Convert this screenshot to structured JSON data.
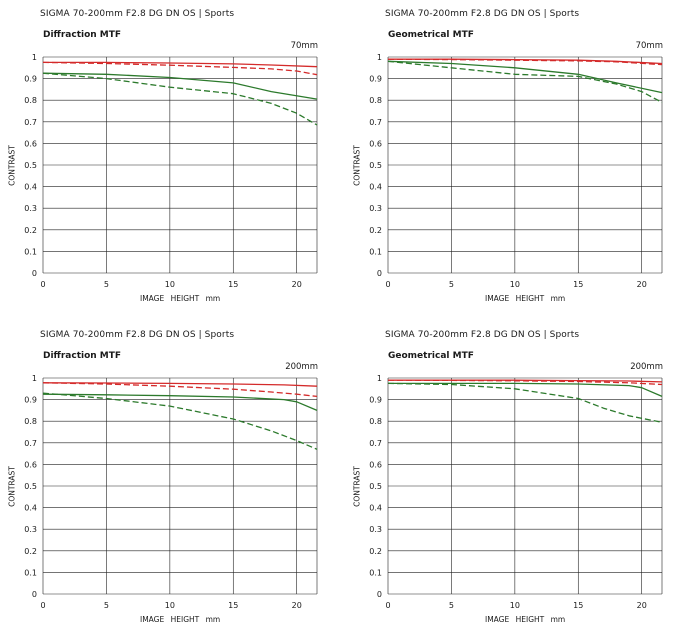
{
  "colors": {
    "sagittal_red": "#d42a2a",
    "meridional_green": "#2c7a2c",
    "grid": "#222222"
  },
  "chart_data": [
    {
      "type": "line",
      "title": "SIGMA 70-200mm F2.8 DG DN OS | Sports",
      "subtitle": "Diffraction MTF",
      "focal": "70mm",
      "xlabel": "IMAGE HEIGHT   mm",
      "ylabel": "CONTRAST",
      "xlim": [
        0,
        21.6
      ],
      "ylim": [
        0,
        1
      ],
      "xticks": [
        0,
        5,
        10,
        15,
        20
      ],
      "yticks": [
        "0",
        "0.1",
        "0.2",
        "0.3",
        "0.4",
        "0.5",
        "0.6",
        "0.7",
        "0.8",
        "0.9",
        "1"
      ],
      "series": [
        {
          "color": "red",
          "dash": false,
          "points": [
            [
              0,
              0.975
            ],
            [
              5,
              0.975
            ],
            [
              10,
              0.972
            ],
            [
              15,
              0.968
            ],
            [
              18,
              0.963
            ],
            [
              21.6,
              0.955
            ]
          ]
        },
        {
          "color": "red",
          "dash": true,
          "points": [
            [
              0,
              0.975
            ],
            [
              5,
              0.97
            ],
            [
              10,
              0.962
            ],
            [
              15,
              0.952
            ],
            [
              18,
              0.945
            ],
            [
              20,
              0.935
            ],
            [
              21.6,
              0.918
            ]
          ]
        },
        {
          "color": "green",
          "dash": false,
          "points": [
            [
              0,
              0.925
            ],
            [
              5,
              0.92
            ],
            [
              10,
              0.905
            ],
            [
              15,
              0.88
            ],
            [
              18,
              0.84
            ],
            [
              21.6,
              0.805
            ]
          ]
        },
        {
          "color": "green",
          "dash": true,
          "points": [
            [
              0,
              0.925
            ],
            [
              5,
              0.9
            ],
            [
              10,
              0.86
            ],
            [
              15,
              0.83
            ],
            [
              18,
              0.785
            ],
            [
              20,
              0.74
            ],
            [
              21.6,
              0.685
            ]
          ]
        }
      ]
    },
    {
      "type": "line",
      "title": "SIGMA 70-200mm F2.8 DG DN OS | Sports",
      "subtitle": "Geometrical MTF",
      "focal": "70mm",
      "xlabel": "IMAGE HEIGHT   mm",
      "ylabel": "CONTRAST",
      "xlim": [
        0,
        21.6
      ],
      "ylim": [
        0,
        1
      ],
      "xticks": [
        0,
        5,
        10,
        15,
        20
      ],
      "yticks": [
        "0",
        "0.1",
        "0.2",
        "0.3",
        "0.4",
        "0.5",
        "0.6",
        "0.7",
        "0.8",
        "0.9",
        "1"
      ],
      "series": [
        {
          "color": "red",
          "dash": false,
          "points": [
            [
              0,
              0.99
            ],
            [
              5,
              0.99
            ],
            [
              10,
              0.988
            ],
            [
              15,
              0.985
            ],
            [
              18,
              0.98
            ],
            [
              21.6,
              0.97
            ]
          ]
        },
        {
          "color": "red",
          "dash": true,
          "points": [
            [
              0,
              0.99
            ],
            [
              5,
              0.988
            ],
            [
              10,
              0.985
            ],
            [
              15,
              0.982
            ],
            [
              18,
              0.978
            ],
            [
              21.6,
              0.965
            ]
          ]
        },
        {
          "color": "green",
          "dash": false,
          "points": [
            [
              0,
              0.98
            ],
            [
              5,
              0.97
            ],
            [
              10,
              0.95
            ],
            [
              15,
              0.92
            ],
            [
              18,
              0.88
            ],
            [
              21.6,
              0.835
            ]
          ]
        },
        {
          "color": "green",
          "dash": true,
          "points": [
            [
              0,
              0.98
            ],
            [
              5,
              0.95
            ],
            [
              10,
              0.92
            ],
            [
              15,
              0.91
            ],
            [
              18,
              0.875
            ],
            [
              20,
              0.84
            ],
            [
              21.6,
              0.79
            ]
          ]
        }
      ]
    },
    {
      "type": "line",
      "title": "SIGMA 70-200mm F2.8 DG DN OS | Sports",
      "subtitle": "Diffraction MTF",
      "focal": "200mm",
      "xlabel": "IMAGE HEIGHT   mm",
      "ylabel": "CONTRAST",
      "xlim": [
        0,
        21.6
      ],
      "ylim": [
        0,
        1
      ],
      "xticks": [
        0,
        5,
        10,
        15,
        20
      ],
      "yticks": [
        "0",
        "0.1",
        "0.2",
        "0.3",
        "0.4",
        "0.5",
        "0.6",
        "0.7",
        "0.8",
        "0.9",
        "1"
      ],
      "series": [
        {
          "color": "red",
          "dash": false,
          "points": [
            [
              0,
              0.978
            ],
            [
              5,
              0.977
            ],
            [
              10,
              0.975
            ],
            [
              15,
              0.972
            ],
            [
              19,
              0.968
            ],
            [
              21.6,
              0.962
            ]
          ]
        },
        {
          "color": "red",
          "dash": true,
          "points": [
            [
              0,
              0.978
            ],
            [
              5,
              0.972
            ],
            [
              10,
              0.962
            ],
            [
              15,
              0.948
            ],
            [
              18,
              0.935
            ],
            [
              20,
              0.925
            ],
            [
              21.6,
              0.915
            ]
          ]
        },
        {
          "color": "green",
          "dash": false,
          "points": [
            [
              0,
              0.925
            ],
            [
              5,
              0.922
            ],
            [
              10,
              0.918
            ],
            [
              15,
              0.912
            ],
            [
              19,
              0.9
            ],
            [
              20,
              0.89
            ],
            [
              21.6,
              0.85
            ]
          ]
        },
        {
          "color": "green",
          "dash": true,
          "points": [
            [
              0,
              0.93
            ],
            [
              5,
              0.905
            ],
            [
              10,
              0.87
            ],
            [
              15,
              0.81
            ],
            [
              18,
              0.755
            ],
            [
              20,
              0.71
            ],
            [
              21.6,
              0.67
            ]
          ]
        }
      ]
    },
    {
      "type": "line",
      "title": "SIGMA 70-200mm F2.8 DG DN OS | Sports",
      "subtitle": "Geometrical MTF",
      "focal": "200mm",
      "xlabel": "IMAGE HEIGHT   mm",
      "ylabel": "CONTRAST",
      "xlim": [
        0,
        21.6
      ],
      "ylim": [
        0,
        1
      ],
      "xticks": [
        0,
        5,
        10,
        15,
        20
      ],
      "yticks": [
        "0",
        "0.1",
        "0.2",
        "0.3",
        "0.4",
        "0.5",
        "0.6",
        "0.7",
        "0.8",
        "0.9",
        "1"
      ],
      "series": [
        {
          "color": "red",
          "dash": false,
          "points": [
            [
              0,
              0.99
            ],
            [
              5,
              0.99
            ],
            [
              10,
              0.99
            ],
            [
              15,
              0.988
            ],
            [
              19,
              0.986
            ],
            [
              21.6,
              0.982
            ]
          ]
        },
        {
          "color": "red",
          "dash": true,
          "points": [
            [
              0,
              0.99
            ],
            [
              5,
              0.989
            ],
            [
              10,
              0.987
            ],
            [
              15,
              0.984
            ],
            [
              19,
              0.978
            ],
            [
              21.6,
              0.97
            ]
          ]
        },
        {
          "color": "green",
          "dash": false,
          "points": [
            [
              0,
              0.975
            ],
            [
              5,
              0.975
            ],
            [
              10,
              0.975
            ],
            [
              15,
              0.972
            ],
            [
              19,
              0.965
            ],
            [
              20,
              0.955
            ],
            [
              21.6,
              0.915
            ]
          ]
        },
        {
          "color": "green",
          "dash": true,
          "points": [
            [
              0,
              0.975
            ],
            [
              5,
              0.97
            ],
            [
              10,
              0.95
            ],
            [
              15,
              0.905
            ],
            [
              17,
              0.86
            ],
            [
              19,
              0.825
            ],
            [
              21.6,
              0.795
            ]
          ]
        }
      ]
    }
  ]
}
